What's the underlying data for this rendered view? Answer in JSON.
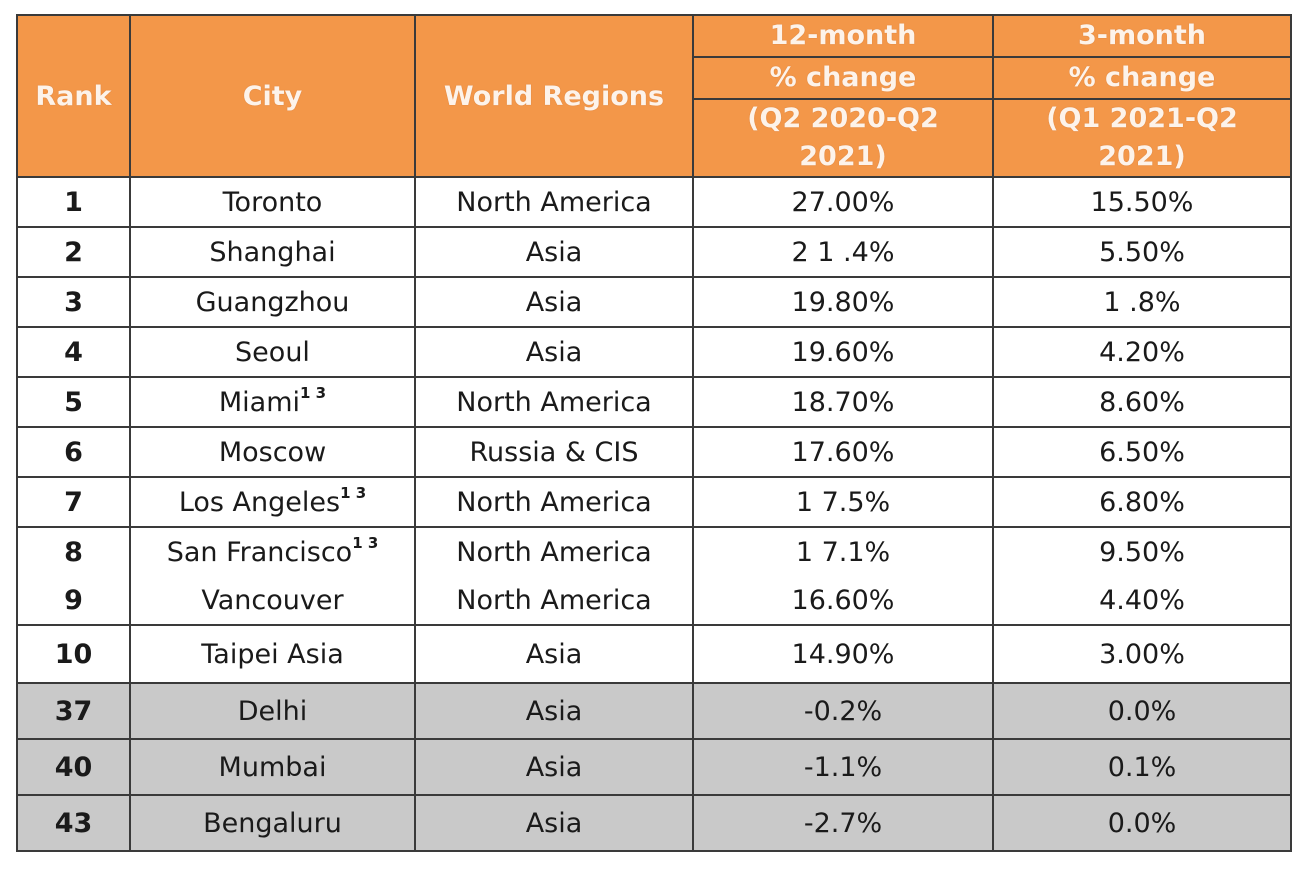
{
  "table": {
    "headers": {
      "rank": "Rank",
      "city": "City",
      "region": "World Regions",
      "m12": {
        "line1": "12-month",
        "line2": "% change",
        "line3a": "(Q2 2020-Q2",
        "line3b": "2021)"
      },
      "m3": {
        "line1": "3-month",
        "line2": "% change",
        "line3a": "(Q1 2021-Q2",
        "line3b": "2021)"
      }
    },
    "rows": [
      {
        "rank": "1",
        "city": "Toronto",
        "sup": "",
        "region": "North America",
        "m12": "27.00%",
        "m3": "15.50%"
      },
      {
        "rank": "2",
        "city": "Shanghai",
        "sup": "",
        "region": "Asia",
        "m12": "2 1 .4%",
        "m3": "5.50%"
      },
      {
        "rank": "3",
        "city": "Guangzhou",
        "sup": "",
        "region": "Asia",
        "m12": "19.80%",
        "m3": "1 .8%"
      },
      {
        "rank": "4",
        "city": "Seoul",
        "sup": "",
        "region": "Asia",
        "m12": "19.60%",
        "m3": "4.20%"
      },
      {
        "rank": "5",
        "city": "Miami",
        "sup": "1 3",
        "region": "North America",
        "m12": "18.70%",
        "m3": "8.60%"
      },
      {
        "rank": "6",
        "city": "Moscow",
        "sup": "",
        "region": "Russia & CIS",
        "m12": "17.60%",
        "m3": "6.50%"
      },
      {
        "rank": "7",
        "city": "Los Angeles",
        "sup": "1 3",
        "region": "North America",
        "m12": "1 7.5%",
        "m3": "6.80%"
      },
      {
        "rank": "8",
        "city": "San Francisco",
        "sup": "1 3",
        "region": "North America",
        "m12": "1 7.1%",
        "m3": "9.50%"
      },
      {
        "rank": "9",
        "city": "Vancouver",
        "sup": "",
        "region": "North America",
        "m12": "16.60%",
        "m3": "4.40%"
      },
      {
        "rank": "10",
        "city": "Taipei Asia",
        "sup": "",
        "region": "Asia",
        "m12": "14.90%",
        "m3": "3.00%"
      },
      {
        "rank": "37",
        "city": "Delhi",
        "sup": "",
        "region": "Asia",
        "m12": "-0.2%",
        "m3": "0.0%"
      },
      {
        "rank": "40",
        "city": "Mumbai",
        "sup": "",
        "region": "Asia",
        "m12": "-1.1%",
        "m3": "0.1%"
      },
      {
        "rank": "43",
        "city": "Bengaluru",
        "sup": "",
        "region": "Asia",
        "m12": "-2.7%",
        "m3": "0.0%"
      }
    ],
    "colors": {
      "header_bg": "#f39749",
      "header_text": "#fdf3ea",
      "highlight_row_bg": "#c9c9c9",
      "border": "#3a3a3a"
    }
  }
}
